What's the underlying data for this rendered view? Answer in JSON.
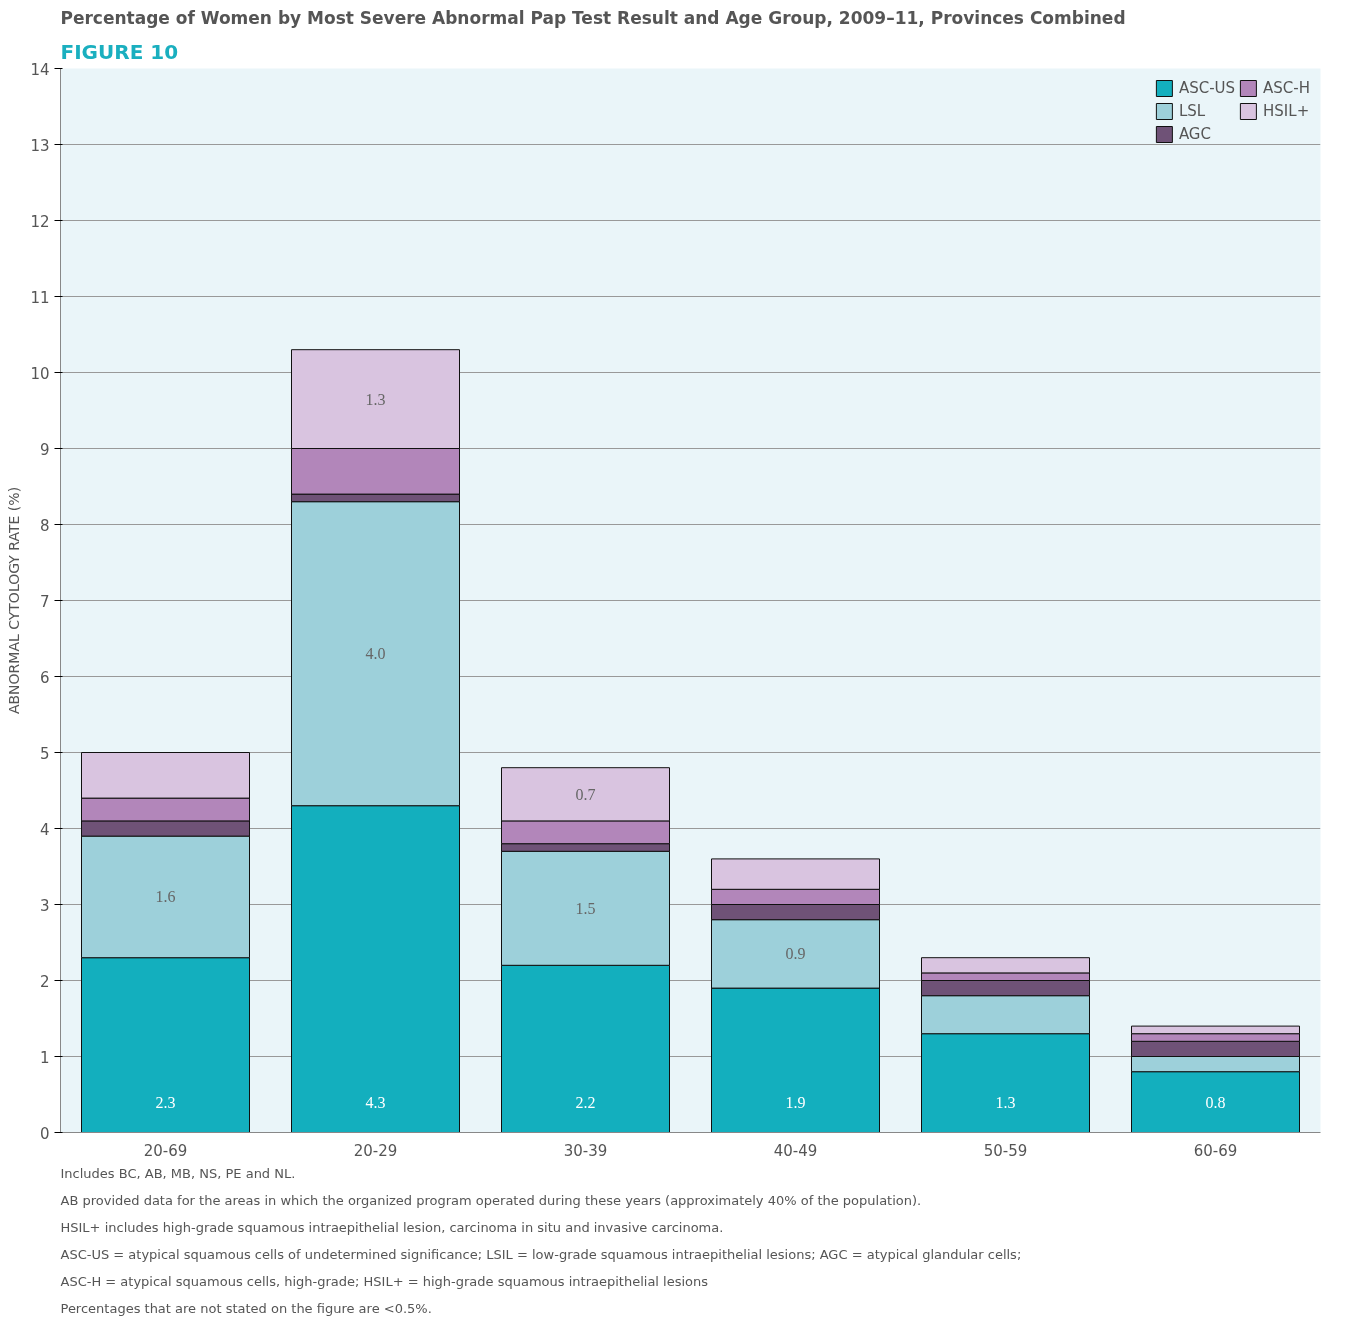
{
  "chart_data": {
    "type": "bar",
    "stacked": true,
    "title": "FIGURE 10",
    "subtitle": "Percentage of Women by Most Severe Abnormal Pap Test Result and Age Group, 2009–11, Provinces Combined",
    "ylabel": "ABNORMAL CYTOLOGY RATE (%)",
    "categories": [
      "20-69",
      "20-29",
      "30-39",
      "40-49",
      "50-59",
      "60-69"
    ],
    "series": [
      {
        "name": "ASC-US",
        "color": "#13afbe",
        "values": [
          2.3,
          4.3,
          2.2,
          1.9,
          1.3,
          0.8
        ],
        "value_labels": [
          "2.3",
          "4.3",
          "2.2",
          "1.9",
          "1.3",
          "0.8"
        ]
      },
      {
        "name": "LSL",
        "color": "#9dd0da",
        "values": [
          1.6,
          4.0,
          1.5,
          0.9,
          0.5,
          0.2
        ],
        "value_labels": [
          "1.6",
          "4.0",
          "1.5",
          "0.9",
          null,
          null
        ]
      },
      {
        "name": "AGC",
        "color": "#6f5277",
        "values": [
          0.2,
          0.1,
          0.1,
          0.2,
          0.2,
          0.2
        ]
      },
      {
        "name": "ASC-H",
        "color": "#b286ba",
        "values": [
          0.3,
          0.6,
          0.3,
          0.2,
          0.1,
          0.1
        ]
      },
      {
        "name": "HSIL+",
        "color": "#d9c4e0",
        "values": [
          0.6,
          1.3,
          0.7,
          0.4,
          0.2,
          0.1
        ],
        "value_labels": [
          null,
          "1.3",
          "0.7",
          null,
          null,
          null
        ]
      }
    ],
    "ylim": [
      0,
      14
    ],
    "yticks": [
      0,
      1,
      2,
      3,
      4,
      5,
      6,
      7,
      8,
      9,
      10,
      11,
      12,
      13,
      14
    ],
    "grid": "y",
    "legend": "top right",
    "annotations": [
      "Includes BC, AB, MB, NS, PE and NL.",
      "AB provided data for the areas in which the organized program operated during these years (approximately 40% of the population).",
      "HSIL+ includes high-grade squamous intraepithelial lesion, carcinoma in situ and invasive carcinoma.",
      "ASC-US = atypical squamous cells of undetermined significance; LSIL = low-grade squamous intraepithelial lesions; AGC = atypical glandular cells;",
      "ASC-H = atypical squamous cells, high-grade; HSIL+ = high-grade squamous intraepithelial lesions",
      "Percentages that are not stated on the figure are <0.5%."
    ]
  }
}
